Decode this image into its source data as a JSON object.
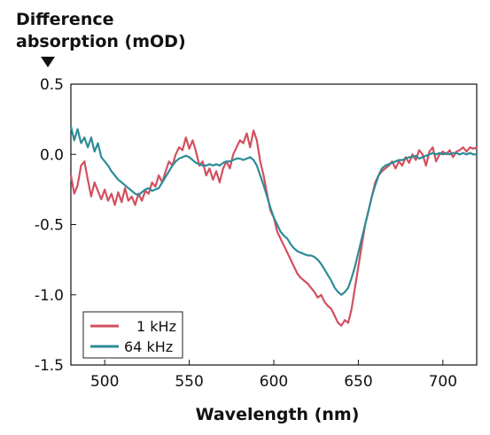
{
  "chart_data": {
    "type": "line",
    "ylabel_lines": [
      "Difference",
      "absorption (mOD)"
    ],
    "xlabel": "Wavelength (nm)",
    "xlim": [
      480,
      720
    ],
    "ylim": [
      -1.5,
      0.5
    ],
    "x_ticks": [
      500,
      550,
      600,
      650,
      700
    ],
    "x_tick_labels": [
      "500",
      "550",
      "600",
      "650",
      "700"
    ],
    "y_ticks": [
      0.5,
      0.0,
      -0.5,
      -1.0,
      -1.5
    ],
    "y_tick_labels": [
      "0.5",
      "0.0",
      "-0.5",
      "-1.0",
      "-1.5"
    ],
    "grid": false,
    "legend_position": "bottom-left",
    "series": [
      {
        "name": "1 kHz",
        "color": "#d2505f",
        "points": [
          [
            480,
            -0.15
          ],
          [
            482,
            -0.28
          ],
          [
            484,
            -0.22
          ],
          [
            486,
            -0.08
          ],
          [
            488,
            -0.05
          ],
          [
            490,
            -0.18
          ],
          [
            492,
            -0.3
          ],
          [
            494,
            -0.2
          ],
          [
            496,
            -0.26
          ],
          [
            498,
            -0.32
          ],
          [
            500,
            -0.25
          ],
          [
            502,
            -0.33
          ],
          [
            504,
            -0.28
          ],
          [
            506,
            -0.36
          ],
          [
            508,
            -0.27
          ],
          [
            510,
            -0.34
          ],
          [
            512,
            -0.24
          ],
          [
            514,
            -0.33
          ],
          [
            516,
            -0.3
          ],
          [
            518,
            -0.36
          ],
          [
            520,
            -0.28
          ],
          [
            522,
            -0.33
          ],
          [
            524,
            -0.26
          ],
          [
            526,
            -0.28
          ],
          [
            528,
            -0.2
          ],
          [
            530,
            -0.23
          ],
          [
            532,
            -0.15
          ],
          [
            534,
            -0.2
          ],
          [
            536,
            -0.12
          ],
          [
            538,
            -0.05
          ],
          [
            540,
            -0.08
          ],
          [
            542,
            0.0
          ],
          [
            544,
            0.05
          ],
          [
            546,
            0.03
          ],
          [
            548,
            0.12
          ],
          [
            550,
            0.04
          ],
          [
            552,
            0.1
          ],
          [
            554,
            0.02
          ],
          [
            556,
            -0.08
          ],
          [
            558,
            -0.05
          ],
          [
            560,
            -0.15
          ],
          [
            562,
            -0.1
          ],
          [
            564,
            -0.18
          ],
          [
            566,
            -0.12
          ],
          [
            568,
            -0.2
          ],
          [
            570,
            -0.1
          ],
          [
            572,
            -0.05
          ],
          [
            574,
            -0.1
          ],
          [
            576,
            0.0
          ],
          [
            578,
            0.05
          ],
          [
            580,
            0.1
          ],
          [
            582,
            0.08
          ],
          [
            584,
            0.15
          ],
          [
            586,
            0.05
          ],
          [
            588,
            0.17
          ],
          [
            590,
            0.1
          ],
          [
            592,
            -0.05
          ],
          [
            594,
            -0.15
          ],
          [
            596,
            -0.28
          ],
          [
            598,
            -0.4
          ],
          [
            600,
            -0.45
          ],
          [
            602,
            -0.55
          ],
          [
            604,
            -0.6
          ],
          [
            606,
            -0.65
          ],
          [
            608,
            -0.7
          ],
          [
            610,
            -0.75
          ],
          [
            612,
            -0.8
          ],
          [
            614,
            -0.85
          ],
          [
            616,
            -0.88
          ],
          [
            618,
            -0.9
          ],
          [
            620,
            -0.92
          ],
          [
            622,
            -0.95
          ],
          [
            624,
            -0.98
          ],
          [
            626,
            -1.02
          ],
          [
            628,
            -1.0
          ],
          [
            630,
            -1.05
          ],
          [
            632,
            -1.08
          ],
          [
            634,
            -1.1
          ],
          [
            636,
            -1.15
          ],
          [
            638,
            -1.2
          ],
          [
            640,
            -1.22
          ],
          [
            642,
            -1.18
          ],
          [
            644,
            -1.2
          ],
          [
            646,
            -1.1
          ],
          [
            648,
            -0.95
          ],
          [
            650,
            -0.8
          ],
          [
            652,
            -0.65
          ],
          [
            654,
            -0.5
          ],
          [
            656,
            -0.4
          ],
          [
            658,
            -0.3
          ],
          [
            660,
            -0.2
          ],
          [
            662,
            -0.15
          ],
          [
            664,
            -0.12
          ],
          [
            666,
            -0.1
          ],
          [
            668,
            -0.08
          ],
          [
            670,
            -0.05
          ],
          [
            672,
            -0.1
          ],
          [
            674,
            -0.05
          ],
          [
            676,
            -0.08
          ],
          [
            678,
            -0.02
          ],
          [
            680,
            -0.06
          ],
          [
            682,
            0.0
          ],
          [
            684,
            -0.04
          ],
          [
            686,
            0.03
          ],
          [
            688,
            0.0
          ],
          [
            690,
            -0.08
          ],
          [
            692,
            0.02
          ],
          [
            694,
            0.05
          ],
          [
            696,
            -0.05
          ],
          [
            698,
            0.0
          ],
          [
            700,
            0.02
          ],
          [
            702,
            0.0
          ],
          [
            704,
            0.03
          ],
          [
            706,
            -0.02
          ],
          [
            708,
            0.02
          ],
          [
            710,
            0.03
          ],
          [
            712,
            0.05
          ],
          [
            714,
            0.02
          ],
          [
            716,
            0.05
          ],
          [
            718,
            0.04
          ],
          [
            720,
            0.05
          ]
        ]
      },
      {
        "name": "64 kHz",
        "color": "#2d8c96",
        "points": [
          [
            480,
            0.2
          ],
          [
            482,
            0.1
          ],
          [
            484,
            0.18
          ],
          [
            486,
            0.08
          ],
          [
            488,
            0.12
          ],
          [
            490,
            0.05
          ],
          [
            492,
            0.12
          ],
          [
            494,
            0.02
          ],
          [
            496,
            0.08
          ],
          [
            498,
            -0.02
          ],
          [
            500,
            -0.05
          ],
          [
            502,
            -0.08
          ],
          [
            504,
            -0.12
          ],
          [
            506,
            -0.15
          ],
          [
            508,
            -0.18
          ],
          [
            510,
            -0.2
          ],
          [
            512,
            -0.22
          ],
          [
            514,
            -0.24
          ],
          [
            516,
            -0.26
          ],
          [
            518,
            -0.28
          ],
          [
            520,
            -0.29
          ],
          [
            522,
            -0.27
          ],
          [
            524,
            -0.25
          ],
          [
            526,
            -0.24
          ],
          [
            528,
            -0.26
          ],
          [
            530,
            -0.25
          ],
          [
            532,
            -0.24
          ],
          [
            534,
            -0.2
          ],
          [
            536,
            -0.16
          ],
          [
            538,
            -0.12
          ],
          [
            540,
            -0.08
          ],
          [
            542,
            -0.05
          ],
          [
            544,
            -0.03
          ],
          [
            546,
            -0.02
          ],
          [
            548,
            -0.01
          ],
          [
            550,
            -0.02
          ],
          [
            552,
            -0.04
          ],
          [
            554,
            -0.06
          ],
          [
            556,
            -0.07
          ],
          [
            558,
            -0.08
          ],
          [
            560,
            -0.08
          ],
          [
            562,
            -0.07
          ],
          [
            564,
            -0.08
          ],
          [
            566,
            -0.07
          ],
          [
            568,
            -0.08
          ],
          [
            570,
            -0.06
          ],
          [
            572,
            -0.05
          ],
          [
            574,
            -0.05
          ],
          [
            576,
            -0.04
          ],
          [
            578,
            -0.03
          ],
          [
            580,
            -0.03
          ],
          [
            582,
            -0.04
          ],
          [
            584,
            -0.03
          ],
          [
            586,
            -0.02
          ],
          [
            588,
            -0.04
          ],
          [
            590,
            -0.08
          ],
          [
            592,
            -0.15
          ],
          [
            594,
            -0.22
          ],
          [
            596,
            -0.3
          ],
          [
            598,
            -0.38
          ],
          [
            600,
            -0.45
          ],
          [
            602,
            -0.5
          ],
          [
            604,
            -0.55
          ],
          [
            606,
            -0.58
          ],
          [
            608,
            -0.6
          ],
          [
            610,
            -0.64
          ],
          [
            612,
            -0.67
          ],
          [
            614,
            -0.69
          ],
          [
            616,
            -0.7
          ],
          [
            618,
            -0.71
          ],
          [
            620,
            -0.72
          ],
          [
            622,
            -0.72
          ],
          [
            624,
            -0.73
          ],
          [
            626,
            -0.75
          ],
          [
            628,
            -0.78
          ],
          [
            630,
            -0.82
          ],
          [
            632,
            -0.86
          ],
          [
            634,
            -0.9
          ],
          [
            636,
            -0.95
          ],
          [
            638,
            -0.98
          ],
          [
            640,
            -1.0
          ],
          [
            642,
            -0.98
          ],
          [
            644,
            -0.95
          ],
          [
            646,
            -0.88
          ],
          [
            648,
            -0.8
          ],
          [
            650,
            -0.7
          ],
          [
            652,
            -0.6
          ],
          [
            654,
            -0.5
          ],
          [
            656,
            -0.4
          ],
          [
            658,
            -0.3
          ],
          [
            660,
            -0.22
          ],
          [
            662,
            -0.15
          ],
          [
            664,
            -0.1
          ],
          [
            666,
            -0.08
          ],
          [
            668,
            -0.07
          ],
          [
            670,
            -0.06
          ],
          [
            672,
            -0.05
          ],
          [
            674,
            -0.04
          ],
          [
            676,
            -0.04
          ],
          [
            678,
            -0.03
          ],
          [
            680,
            -0.02
          ],
          [
            682,
            -0.02
          ],
          [
            684,
            -0.01
          ],
          [
            686,
            -0.03
          ],
          [
            688,
            -0.02
          ],
          [
            690,
            -0.01
          ],
          [
            692,
            0.0
          ],
          [
            694,
            0.01
          ],
          [
            696,
            0.0
          ],
          [
            698,
            0.01
          ],
          [
            700,
            0.0
          ],
          [
            702,
            0.01
          ],
          [
            704,
            0.0
          ],
          [
            706,
            0.01
          ],
          [
            708,
            0.01
          ],
          [
            710,
            0.0
          ],
          [
            712,
            0.01
          ],
          [
            714,
            0.0
          ],
          [
            716,
            0.01
          ],
          [
            718,
            0.0
          ],
          [
            720,
            0.0
          ]
        ]
      }
    ]
  }
}
